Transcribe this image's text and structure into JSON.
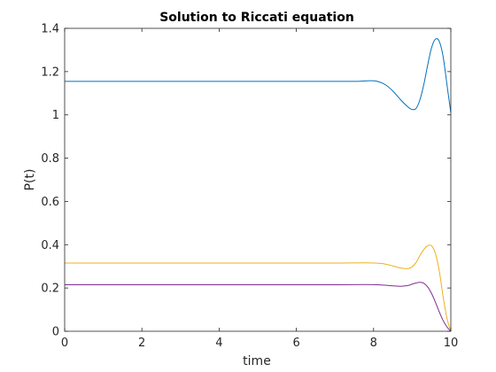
{
  "chart_data": {
    "type": "line",
    "title": "Solution to Riccati equation",
    "xlabel": "time",
    "ylabel": "P(t)",
    "xlim": [
      0,
      10
    ],
    "ylim": [
      0,
      1.4
    ],
    "xticks": [
      0,
      2,
      4,
      6,
      8,
      10
    ],
    "xtick_labels": [
      "0",
      "2",
      "4",
      "6",
      "8",
      "10"
    ],
    "yticks": [
      0,
      0.2,
      0.4,
      0.6,
      0.8,
      1,
      1.2,
      1.4
    ],
    "ytick_labels": [
      "0",
      "0.2",
      "0.4",
      "0.6",
      "0.8",
      "1",
      "1.2",
      "1.4"
    ],
    "grid": false,
    "series": [
      {
        "color": "#0072BD",
        "x": [
          0,
          1,
          2,
          3,
          4,
          5,
          6,
          7,
          7.6,
          7.9,
          8.1,
          8.3,
          8.5,
          8.7,
          8.9,
          9.0,
          9.1,
          9.2,
          9.3,
          9.4,
          9.5,
          9.6,
          9.7,
          9.8,
          9.9,
          10
        ],
        "y": [
          1.155,
          1.155,
          1.155,
          1.155,
          1.155,
          1.155,
          1.155,
          1.155,
          1.155,
          1.158,
          1.155,
          1.14,
          1.11,
          1.07,
          1.035,
          1.025,
          1.03,
          1.07,
          1.14,
          1.23,
          1.31,
          1.35,
          1.34,
          1.27,
          1.14,
          1.01
        ]
      },
      {
        "color": "#EDB120",
        "x": [
          0,
          1,
          2,
          3,
          4,
          5,
          6,
          7,
          7.8,
          8.2,
          8.5,
          8.7,
          8.9,
          9.0,
          9.1,
          9.2,
          9.3,
          9.4,
          9.5,
          9.6,
          9.7,
          9.8,
          9.9,
          10
        ],
        "y": [
          0.315,
          0.315,
          0.315,
          0.315,
          0.315,
          0.315,
          0.315,
          0.315,
          0.316,
          0.313,
          0.302,
          0.292,
          0.29,
          0.298,
          0.318,
          0.35,
          0.378,
          0.395,
          0.395,
          0.36,
          0.28,
          0.16,
          0.06,
          0.0
        ]
      },
      {
        "color": "#7E2F8E",
        "x": [
          0,
          1,
          2,
          3,
          4,
          5,
          6,
          7,
          7.8,
          8.2,
          8.5,
          8.7,
          8.9,
          9.0,
          9.1,
          9.2,
          9.3,
          9.4,
          9.5,
          9.6,
          9.7,
          9.8,
          9.9,
          10
        ],
        "y": [
          0.215,
          0.215,
          0.215,
          0.215,
          0.215,
          0.215,
          0.215,
          0.215,
          0.216,
          0.214,
          0.21,
          0.208,
          0.212,
          0.218,
          0.223,
          0.226,
          0.222,
          0.205,
          0.175,
          0.135,
          0.09,
          0.05,
          0.02,
          0.0
        ]
      }
    ]
  }
}
